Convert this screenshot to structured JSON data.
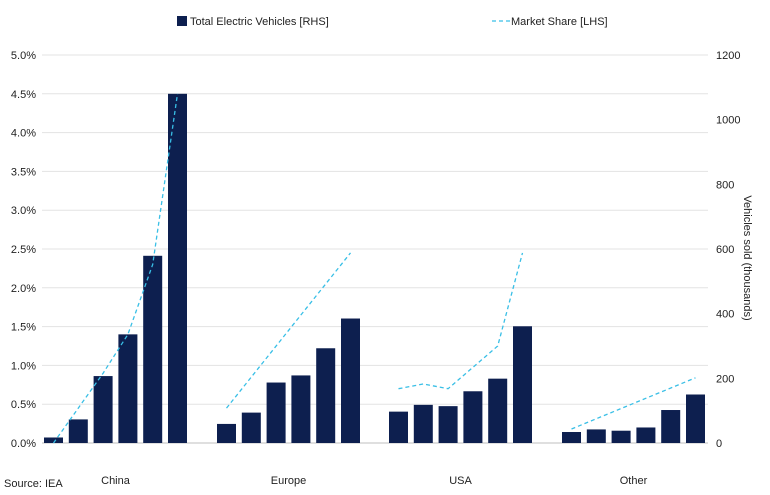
{
  "chart_data": {
    "type": "bar",
    "groups": [
      "China",
      "Europe",
      "USA",
      "Other"
    ],
    "bars_per_group": 6,
    "series": [
      {
        "name": "Total Electric Vehicles [RHS]",
        "kind": "bar",
        "axis": "right",
        "color": "#0d1f4f",
        "values": [
          [
            17,
            73,
            207,
            336,
            579,
            1080
          ],
          [
            59,
            94,
            187,
            209,
            293,
            385
          ],
          [
            97,
            118,
            114,
            160,
            199,
            361
          ],
          [
            34,
            42,
            38,
            48,
            102,
            150
          ]
        ]
      },
      {
        "name": "Market Share [LHS]",
        "kind": "line",
        "axis": "left",
        "color": "#39bfe6",
        "dash": true,
        "values": [
          [
            0.0,
            0.0045,
            0.009,
            0.014,
            0.023,
            0.045
          ],
          [
            0.0045,
            null,
            null,
            null,
            null,
            0.0245
          ],
          [
            0.007,
            0.0076,
            0.007,
            null,
            0.0125,
            0.0245
          ],
          [
            0.0018,
            null,
            null,
            null,
            null,
            0.0084
          ]
        ]
      }
    ],
    "y_left": {
      "min": 0,
      "max": 0.05,
      "ticks": [
        "0.0%",
        "0.5%",
        "1.0%",
        "1.5%",
        "2.0%",
        "2.5%",
        "3.0%",
        "3.5%",
        "4.0%",
        "4.5%",
        "5.0%"
      ]
    },
    "y_right": {
      "min": 0,
      "max": 1200,
      "ticks": [
        "0",
        "200",
        "400",
        "600",
        "800",
        "1000",
        "1200"
      ],
      "label": "Vehicles sold (thousands)"
    },
    "grid": true,
    "legend_position": "top"
  },
  "source": "Source: IEA"
}
